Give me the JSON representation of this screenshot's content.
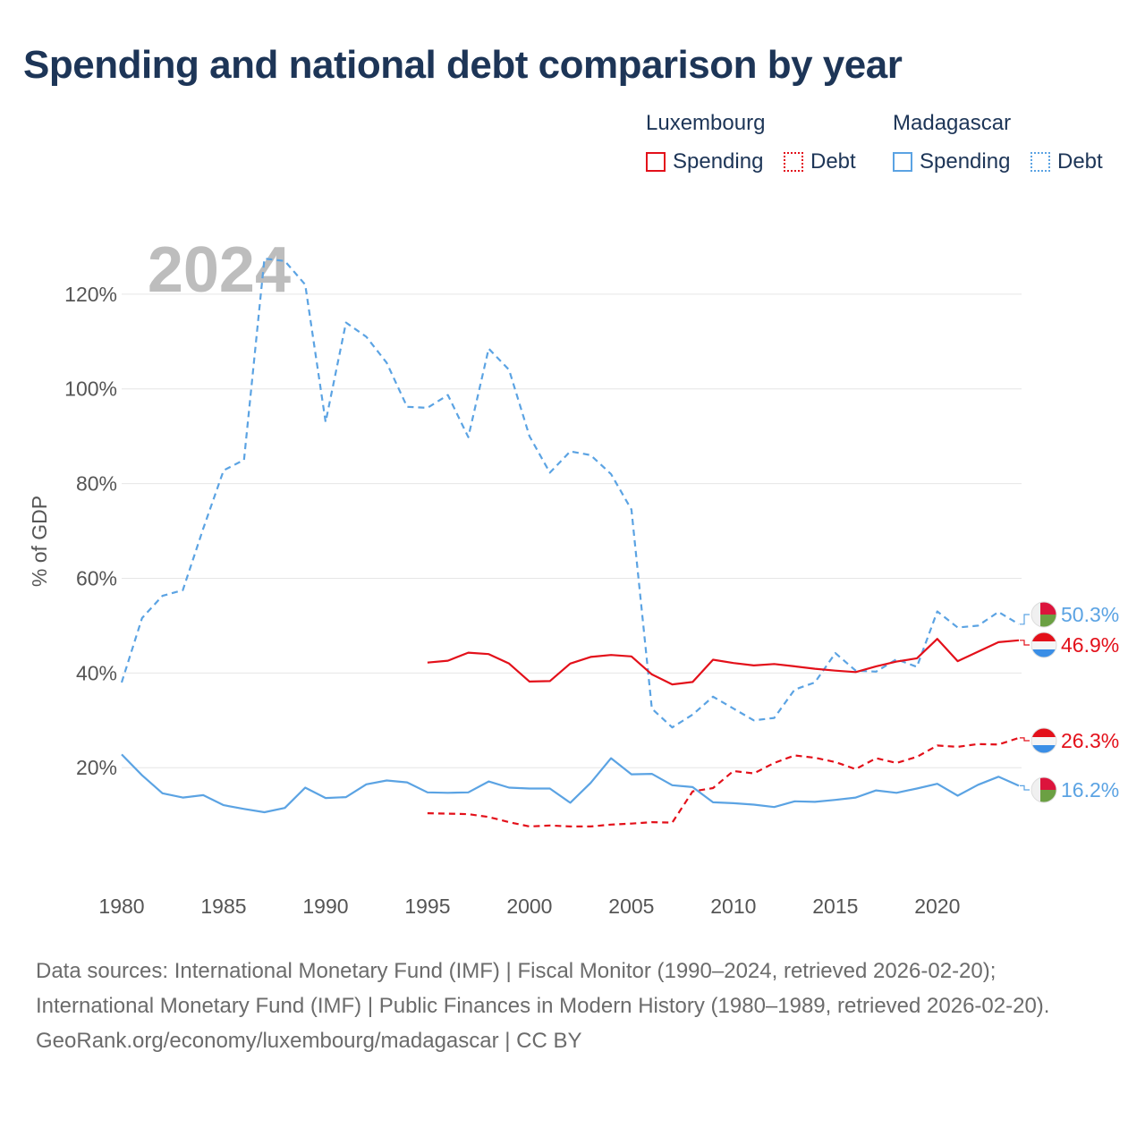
{
  "title": "Spending and national debt comparison by year",
  "legend": {
    "groups": [
      {
        "name": "Luxembourg",
        "items": [
          {
            "label": "Spending",
            "color": "#e3101a",
            "style": "solid"
          },
          {
            "label": "Debt",
            "color": "#e3101a",
            "style": "dotted"
          }
        ]
      },
      {
        "name": "Madagascar",
        "items": [
          {
            "label": "Spending",
            "color": "#5ba3e3",
            "style": "solid"
          },
          {
            "label": "Debt",
            "color": "#5ba3e3",
            "style": "dotted"
          }
        ]
      }
    ]
  },
  "chart_data": {
    "type": "line",
    "title": "Spending and national debt comparison by year",
    "xlabel": "",
    "ylabel": "% of GDP",
    "xlim": [
      1980,
      2024
    ],
    "ylim": [
      -3,
      133
    ],
    "x_ticks": [
      1980,
      1985,
      1990,
      1995,
      2000,
      2005,
      2010,
      2015,
      2020
    ],
    "y_ticks": [
      20,
      40,
      60,
      80,
      100,
      120
    ],
    "y_tick_labels": [
      "20%",
      "40%",
      "60%",
      "80%",
      "100%",
      "120%"
    ],
    "grid": "horizontal",
    "year_watermark": "2024",
    "series": [
      {
        "name": "Madagascar Debt",
        "country": "Madagascar",
        "metric": "Debt",
        "color": "#5ba3e3",
        "dash": "dashed",
        "end_label": "50.3%",
        "x": [
          1980,
          1981,
          1982,
          1983,
          1984,
          1985,
          1986,
          1987,
          1988,
          1989,
          1990,
          1991,
          1992,
          1993,
          1994,
          1995,
          1996,
          1997,
          1998,
          1999,
          2000,
          2001,
          2002,
          2003,
          2004,
          2005,
          2006,
          2007,
          2008,
          2009,
          2010,
          2011,
          2012,
          2013,
          2014,
          2015,
          2016,
          2017,
          2018,
          2019,
          2020,
          2021,
          2022,
          2023,
          2024
        ],
        "values": [
          38.0,
          51.6,
          56.3,
          57.5,
          70.5,
          82.8,
          85.0,
          127.5,
          127.0,
          122.0,
          93.0,
          114.0,
          111.0,
          105.5,
          96.2,
          96.0,
          98.7,
          89.8,
          108.5,
          104.0,
          90.0,
          82.3,
          86.8,
          86.0,
          82.0,
          74.5,
          32.5,
          28.5,
          31.2,
          35.0,
          32.5,
          30.0,
          30.5,
          36.5,
          38.0,
          44.2,
          40.5,
          40.3,
          42.9,
          41.3,
          53.0,
          49.6,
          50.0,
          52.9,
          50.3
        ]
      },
      {
        "name": "Luxembourg Spending",
        "country": "Luxembourg",
        "metric": "Spending",
        "color": "#e3101a",
        "dash": "solid",
        "end_label": "46.9%",
        "x": [
          1995,
          1996,
          1997,
          1998,
          1999,
          2000,
          2001,
          2002,
          2003,
          2004,
          2005,
          2006,
          2007,
          2008,
          2009,
          2010,
          2011,
          2012,
          2013,
          2014,
          2015,
          2016,
          2017,
          2018,
          2019,
          2020,
          2021,
          2022,
          2023,
          2024
        ],
        "values": [
          42.2,
          42.6,
          44.3,
          44.0,
          42.0,
          38.2,
          38.3,
          42.0,
          43.4,
          43.8,
          43.5,
          39.7,
          37.6,
          38.1,
          42.8,
          42.1,
          41.6,
          41.9,
          41.4,
          40.9,
          40.5,
          40.2,
          41.4,
          42.4,
          43.1,
          47.2,
          42.5,
          44.5,
          46.5,
          46.9
        ]
      },
      {
        "name": "Luxembourg Debt",
        "country": "Luxembourg",
        "metric": "Debt",
        "color": "#e3101a",
        "dash": "dashed",
        "end_label": "26.3%",
        "x": [
          1995,
          1996,
          1997,
          1998,
          1999,
          2000,
          2001,
          2002,
          2003,
          2004,
          2005,
          2006,
          2007,
          2008,
          2009,
          2010,
          2011,
          2012,
          2013,
          2014,
          2015,
          2016,
          2017,
          2018,
          2019,
          2020,
          2021,
          2022,
          2023,
          2024
        ],
        "values": [
          10.4,
          10.3,
          10.2,
          9.6,
          8.5,
          7.6,
          7.8,
          7.6,
          7.6,
          8.0,
          8.2,
          8.5,
          8.4,
          15.0,
          15.7,
          19.3,
          18.8,
          21.0,
          22.6,
          22.1,
          21.2,
          19.7,
          22.0,
          21.0,
          22.3,
          24.7,
          24.4,
          25.0,
          24.9,
          26.3
        ]
      },
      {
        "name": "Madagascar Spending",
        "country": "Madagascar",
        "metric": "Spending",
        "color": "#5ba3e3",
        "dash": "solid",
        "end_label": "16.2%",
        "x": [
          1980,
          1981,
          1982,
          1983,
          1984,
          1985,
          1986,
          1987,
          1988,
          1989,
          1990,
          1991,
          1992,
          1993,
          1994,
          1995,
          1996,
          1997,
          1998,
          1999,
          2000,
          2001,
          2002,
          2003,
          2004,
          2005,
          2006,
          2007,
          2008,
          2009,
          2010,
          2011,
          2012,
          2013,
          2014,
          2015,
          2016,
          2017,
          2018,
          2019,
          2020,
          2021,
          2022,
          2023,
          2024
        ],
        "values": [
          22.8,
          18.4,
          14.6,
          13.7,
          14.2,
          12.1,
          11.3,
          10.6,
          11.5,
          15.8,
          13.6,
          13.8,
          16.5,
          17.3,
          16.9,
          14.8,
          14.7,
          14.8,
          17.1,
          15.8,
          15.6,
          15.6,
          12.6,
          16.8,
          22.0,
          18.6,
          18.7,
          16.3,
          15.9,
          12.7,
          12.5,
          12.2,
          11.7,
          12.9,
          12.8,
          13.2,
          13.7,
          15.2,
          14.7,
          15.6,
          16.6,
          14.1,
          16.4,
          18.1,
          16.2
        ]
      }
    ]
  },
  "end_markers": [
    {
      "label": "50.3%",
      "flag": "madagascar"
    },
    {
      "label": "46.9%",
      "flag": "luxembourg"
    },
    {
      "label": "26.3%",
      "flag": "luxembourg"
    },
    {
      "label": "16.2%",
      "flag": "madagascar"
    }
  ],
  "flag_colors": {
    "madagascar": [
      "#f0f0f0",
      "#dc143c",
      "#6ba043"
    ],
    "luxembourg": [
      "#e3101a",
      "#f5f5f5",
      "#3a8ee6"
    ]
  },
  "footer": {
    "line1": "Data sources: International Monetary Fund (IMF) | Fiscal Monitor (1990–2024, retrieved 2026-02-20); International Monetary Fund (IMF) | Public Finances in Modern History (1980–1989, retrieved 2026-02-20).",
    "line2": "GeoRank.org/economy/luxembourg/madagascar | CC BY"
  }
}
